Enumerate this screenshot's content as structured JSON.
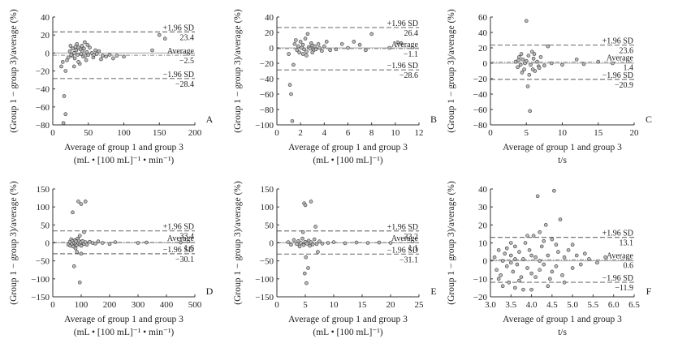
{
  "colors": {
    "axis": "#333333",
    "sd_line": "#777777",
    "avg_line": "#888888",
    "zero_line": "#999999",
    "point_stroke": "#333333",
    "point_fill": "#bbbbbb"
  },
  "chart_data": [
    {
      "type": "scatter",
      "letter": "A",
      "ylabel": "(Group 1 − group 3)/average (%)",
      "xlabel": "Average of group 1 and group 3",
      "xunit": "(mL • [100 mL]⁻¹ • min⁻¹)",
      "xlim": [
        0,
        200
      ],
      "ylim": [
        -80,
        40
      ],
      "xticks": [
        "0",
        "50",
        "100",
        "150",
        "200"
      ],
      "yticks": [
        "−80",
        "−60",
        "−40",
        "−20",
        "0",
        "20",
        "40"
      ],
      "upper_label": "+1.96 SD",
      "upper": 23.4,
      "upper_text": "23.4",
      "avg_label": "Average",
      "avg": -2.5,
      "avg_text": "−2.5",
      "lower_label": "−1.96 SD",
      "lower": -28.4,
      "lower_text": "−28.4",
      "points": [
        [
          15,
          -78
        ],
        [
          16,
          -48
        ],
        [
          18,
          -68
        ],
        [
          12,
          -15
        ],
        [
          14,
          -10
        ],
        [
          18,
          -20
        ],
        [
          20,
          -8
        ],
        [
          22,
          -5
        ],
        [
          24,
          2
        ],
        [
          25,
          8
        ],
        [
          27,
          -3
        ],
        [
          28,
          5
        ],
        [
          30,
          0
        ],
        [
          31,
          -6
        ],
        [
          33,
          3
        ],
        [
          34,
          10
        ],
        [
          35,
          -2
        ],
        [
          36,
          6
        ],
        [
          38,
          -12
        ],
        [
          39,
          4
        ],
        [
          40,
          -1
        ],
        [
          41,
          8
        ],
        [
          42,
          2
        ],
        [
          43,
          -4
        ],
        [
          44,
          5
        ],
        [
          45,
          12
        ],
        [
          46,
          -3
        ],
        [
          48,
          1
        ],
        [
          50,
          -2
        ],
        [
          52,
          6
        ],
        [
          55,
          0
        ],
        [
          57,
          -5
        ],
        [
          60,
          3
        ],
        [
          62,
          -1
        ],
        [
          65,
          2
        ],
        [
          70,
          -3
        ],
        [
          75,
          -4
        ],
        [
          80,
          -2
        ],
        [
          85,
          -6
        ],
        [
          90,
          -3
        ],
        [
          100,
          -4
        ],
        [
          140,
          3
        ],
        [
          150,
          20
        ],
        [
          158,
          16
        ],
        [
          30,
          -15
        ],
        [
          36,
          -10
        ],
        [
          47,
          -8
        ],
        [
          26,
          -2
        ],
        [
          32,
          7
        ],
        [
          49,
          9
        ],
        [
          58,
          -2
        ],
        [
          68,
          -7
        ]
      ]
    },
    {
      "type": "scatter",
      "letter": "B",
      "ylabel": "(Group 1 − group 3)/average (%)",
      "xlabel": "Average of group 1 and group 3",
      "xunit": "(mL • [100 mL]⁻¹)",
      "xlim": [
        0,
        12
      ],
      "ylim": [
        -100,
        40
      ],
      "xticks": [
        "0",
        "2",
        "4",
        "6",
        "8",
        "10",
        "12"
      ],
      "yticks": [
        "−100",
        "−80",
        "−60",
        "−40",
        "−20",
        "0",
        "20",
        "40"
      ],
      "upper_label": "+1.96 SD",
      "upper": 26.4,
      "upper_text": "26.4",
      "avg_label": "Average",
      "avg": -1.1,
      "avg_text": "−1.1",
      "lower_label": "−1.96 SD",
      "lower": -28.6,
      "lower_text": "−28.6",
      "points": [
        [
          1.0,
          -8
        ],
        [
          1.1,
          -48
        ],
        [
          1.2,
          -60
        ],
        [
          1.3,
          -95
        ],
        [
          1.4,
          -22
        ],
        [
          1.5,
          5
        ],
        [
          1.6,
          10
        ],
        [
          1.7,
          -3
        ],
        [
          1.8,
          2
        ],
        [
          1.9,
          -6
        ],
        [
          2.0,
          8
        ],
        [
          2.1,
          0
        ],
        [
          2.2,
          4
        ],
        [
          2.3,
          -2
        ],
        [
          2.4,
          12
        ],
        [
          2.5,
          -5
        ],
        [
          2.6,
          18
        ],
        [
          2.7,
          1
        ],
        [
          2.8,
          -1
        ],
        [
          2.9,
          6
        ],
        [
          3.0,
          3
        ],
        [
          3.1,
          -3
        ],
        [
          3.2,
          2
        ],
        [
          3.3,
          -2
        ],
        [
          3.5,
          5
        ],
        [
          3.6,
          0
        ],
        [
          3.8,
          -4
        ],
        [
          4.0,
          2
        ],
        [
          4.2,
          8
        ],
        [
          4.5,
          -3
        ],
        [
          5.0,
          -2
        ],
        [
          5.5,
          5
        ],
        [
          6.0,
          0
        ],
        [
          6.5,
          8
        ],
        [
          7.0,
          4
        ],
        [
          7.5,
          -3
        ],
        [
          8.0,
          18
        ],
        [
          2.2,
          -8
        ],
        [
          2.5,
          -10
        ],
        [
          3.0,
          -6
        ],
        [
          9.5,
          0
        ],
        [
          10.2,
          7
        ],
        [
          10.5,
          6
        ]
      ]
    },
    {
      "type": "scatter",
      "letter": "C",
      "ylabel": "(Group 1 − group 3)/average (%)",
      "xlabel": "Average of group 1 and group 3",
      "xunit": "t/s",
      "xlim": [
        0,
        20
      ],
      "ylim": [
        -80,
        60
      ],
      "xticks": [
        "0",
        "5",
        "10",
        "15",
        "20"
      ],
      "yticks": [
        "−80",
        "−60",
        "−40",
        "−20",
        "0",
        "20",
        "40",
        "60"
      ],
      "upper_label": "+1.96 SD",
      "upper": 23.6,
      "upper_text": "23.6",
      "avg_label": "Average",
      "avg": 1.4,
      "avg_text": "1.4",
      "lower_label": "−1.96 SD",
      "lower": -20.9,
      "lower_text": "−20.9",
      "points": [
        [
          3.5,
          2
        ],
        [
          3.8,
          -5
        ],
        [
          4.0,
          8
        ],
        [
          4.2,
          -2
        ],
        [
          4.3,
          12
        ],
        [
          4.5,
          5
        ],
        [
          4.7,
          -8
        ],
        [
          4.8,
          0
        ],
        [
          5.0,
          55
        ],
        [
          5.0,
          3
        ],
        [
          5.2,
          -30
        ],
        [
          5.3,
          10
        ],
        [
          5.5,
          -62
        ],
        [
          5.6,
          -2
        ],
        [
          5.8,
          15
        ],
        [
          6.0,
          6
        ],
        [
          6.2,
          -10
        ],
        [
          6.5,
          2
        ],
        [
          6.7,
          -4
        ],
        [
          7.0,
          8
        ],
        [
          7.5,
          -3
        ],
        [
          8.0,
          22
        ],
        [
          8.5,
          0
        ],
        [
          10.0,
          -2
        ],
        [
          12.0,
          5
        ],
        [
          13.0,
          -1
        ],
        [
          15.0,
          2
        ],
        [
          17.0,
          0
        ],
        [
          4.4,
          -12
        ],
        [
          5.4,
          -15
        ],
        [
          6.1,
          12
        ],
        [
          6.8,
          -6
        ],
        [
          5.9,
          -8
        ],
        [
          3.9,
          4
        ]
      ]
    },
    {
      "type": "scatter",
      "letter": "D",
      "ylabel": "(Group 1 − group 3)/average (%)",
      "xlabel": "Average of group 1 and group 3",
      "xunit": "(mL • [100 mL]⁻¹ • min⁻¹)",
      "xlim": [
        0,
        500
      ],
      "ylim": [
        -150,
        150
      ],
      "xticks": [
        "0",
        "100",
        "200",
        "300",
        "400",
        "500"
      ],
      "yticks": [
        "−150",
        "−100",
        "−50",
        "0",
        "50",
        "100",
        "150"
      ],
      "upper_label": "+1.96 SD",
      "upper": 33.4,
      "upper_text": "33.4",
      "avg_label": "Average",
      "avg": 1.6,
      "avg_text": "1.6",
      "lower_label": "−1.96 SD",
      "lower": -30.1,
      "lower_text": "−30.1",
      "points": [
        [
          70,
          85
        ],
        [
          90,
          115
        ],
        [
          100,
          108
        ],
        [
          115,
          115
        ],
        [
          95,
          -110
        ],
        [
          75,
          -65
        ],
        [
          55,
          -5
        ],
        [
          60,
          3
        ],
        [
          62,
          -8
        ],
        [
          65,
          10
        ],
        [
          68,
          -3
        ],
        [
          70,
          5
        ],
        [
          72,
          -10
        ],
        [
          75,
          0
        ],
        [
          78,
          8
        ],
        [
          80,
          -2
        ],
        [
          82,
          4
        ],
        [
          85,
          -6
        ],
        [
          88,
          12
        ],
        [
          90,
          -1
        ],
        [
          92,
          6
        ],
        [
          95,
          -4
        ],
        [
          98,
          2
        ],
        [
          100,
          -8
        ],
        [
          105,
          5
        ],
        [
          110,
          -3
        ],
        [
          115,
          2
        ],
        [
          120,
          -5
        ],
        [
          130,
          3
        ],
        [
          140,
          0
        ],
        [
          150,
          -2
        ],
        [
          160,
          4
        ],
        [
          175,
          0
        ],
        [
          200,
          -3
        ],
        [
          220,
          2
        ],
        [
          300,
          0
        ],
        [
          330,
          1
        ],
        [
          450,
          1
        ],
        [
          85,
          -25
        ],
        [
          100,
          -30
        ],
        [
          110,
          30
        ],
        [
          95,
          20
        ],
        [
          80,
          -15
        ]
      ]
    },
    {
      "type": "scatter",
      "letter": "E",
      "ylabel": "(Group 1 − group 3)/average (%)",
      "xlabel": "Average of group 1 and group 3",
      "xunit": "(mL • [100 mL]⁻¹)",
      "xlim": [
        0,
        25
      ],
      "ylim": [
        -150,
        150
      ],
      "xticks": [
        "0",
        "5",
        "10",
        "15",
        "20",
        "25"
      ],
      "yticks": [
        "−150",
        "−100",
        "−50",
        "0",
        "50",
        "100",
        "150"
      ],
      "upper_label": "+1.96 SD",
      "upper": 33.2,
      "upper_text": "33.2",
      "avg_label": "Average",
      "avg": 1.1,
      "avg_text": "1.1",
      "lower_label": "−1.96 SD",
      "lower": -31.1,
      "lower_text": "−31.1",
      "points": [
        [
          4.8,
          110
        ],
        [
          5.0,
          105
        ],
        [
          6.0,
          115
        ],
        [
          4.9,
          -85
        ],
        [
          5.2,
          -112
        ],
        [
          5.5,
          -70
        ],
        [
          2.0,
          2
        ],
        [
          2.5,
          -5
        ],
        [
          3.0,
          8
        ],
        [
          3.5,
          -3
        ],
        [
          3.8,
          5
        ],
        [
          4.0,
          -10
        ],
        [
          4.2,
          0
        ],
        [
          4.5,
          12
        ],
        [
          4.7,
          -6
        ],
        [
          5.0,
          3
        ],
        [
          5.3,
          -2
        ],
        [
          5.6,
          6
        ],
        [
          5.8,
          -8
        ],
        [
          6.0,
          2
        ],
        [
          6.3,
          -4
        ],
        [
          6.6,
          10
        ],
        [
          7.0,
          -3
        ],
        [
          7.5,
          4
        ],
        [
          8.0,
          -2
        ],
        [
          9.0,
          0
        ],
        [
          10.0,
          2
        ],
        [
          12.0,
          -1
        ],
        [
          14.0,
          1
        ],
        [
          16.0,
          0
        ],
        [
          18.0,
          1
        ],
        [
          20.0,
          0
        ],
        [
          5.1,
          -40
        ],
        [
          4.6,
          30
        ],
        [
          6.8,
          45
        ],
        [
          7.2,
          -25
        ]
      ]
    },
    {
      "type": "scatter",
      "letter": "F",
      "ylabel": "(Group 1 − group 3)/average (%)",
      "xlabel": "Average of group 1 and group 3",
      "xunit": "t/s",
      "xlim": [
        3.0,
        6.5
      ],
      "ylim": [
        -20,
        40
      ],
      "xticks": [
        "3.0",
        "3.5",
        "4.0",
        "4.5",
        "5.0",
        "5.5",
        "6.0",
        "6.5"
      ],
      "yticks": [
        "−20",
        "−10",
        "0",
        "10",
        "20",
        "30",
        "40"
      ],
      "upper_label": "+1.96 SD",
      "upper": 13.1,
      "upper_text": "13.1",
      "avg_label": "Average",
      "avg": 0.6,
      "avg_text": "0.6",
      "lower_label": "−1.96 SD",
      "lower": -11.9,
      "lower_text": "−11.9",
      "points": [
        [
          3.1,
          2
        ],
        [
          3.15,
          -5
        ],
        [
          3.2,
          6
        ],
        [
          3.25,
          -8
        ],
        [
          3.3,
          0
        ],
        [
          3.35,
          4
        ],
        [
          3.4,
          -3
        ],
        [
          3.45,
          -12
        ],
        [
          3.5,
          3
        ],
        [
          3.55,
          -6
        ],
        [
          3.6,
          8
        ],
        [
          3.65,
          -2
        ],
        [
          3.7,
          5
        ],
        [
          3.75,
          -9
        ],
        [
          3.8,
          1
        ],
        [
          3.85,
          10
        ],
        [
          3.9,
          -4
        ],
        [
          3.95,
          6
        ],
        [
          4.0,
          -7
        ],
        [
          4.05,
          14
        ],
        [
          4.1,
          2
        ],
        [
          4.15,
          36
        ],
        [
          4.2,
          -5
        ],
        [
          4.25,
          8
        ],
        [
          4.3,
          -2
        ],
        [
          4.35,
          20
        ],
        [
          4.4,
          3
        ],
        [
          4.45,
          -10
        ],
        [
          4.5,
          12
        ],
        [
          4.55,
          39
        ],
        [
          4.6,
          -3
        ],
        [
          4.65,
          5
        ],
        [
          4.7,
          23
        ],
        [
          4.75,
          -8
        ],
        [
          4.8,
          2
        ],
        [
          4.9,
          6
        ],
        [
          5.0,
          -4
        ],
        [
          5.1,
          3
        ],
        [
          5.2,
          -2
        ],
        [
          5.3,
          4
        ],
        [
          5.4,
          1
        ],
        [
          5.6,
          -1
        ],
        [
          5.8,
          2
        ],
        [
          3.3,
          -14
        ],
        [
          3.6,
          -15
        ],
        [
          3.9,
          14
        ],
        [
          4.0,
          -16
        ],
        [
          4.2,
          16
        ],
        [
          4.4,
          -14
        ],
        [
          4.6,
          9
        ],
        [
          3.4,
          7
        ],
        [
          3.7,
          -11
        ],
        [
          4.1,
          -9
        ],
        [
          4.3,
          11
        ],
        [
          4.5,
          -6
        ],
        [
          3.5,
          10
        ],
        [
          3.2,
          -10
        ],
        [
          4.8,
          -12
        ],
        [
          5.0,
          9
        ],
        [
          3.8,
          -16
        ],
        [
          4.0,
          3
        ],
        [
          3.5,
          -1
        ],
        [
          3.6,
          1
        ],
        [
          4.2,
          0
        ]
      ]
    }
  ]
}
